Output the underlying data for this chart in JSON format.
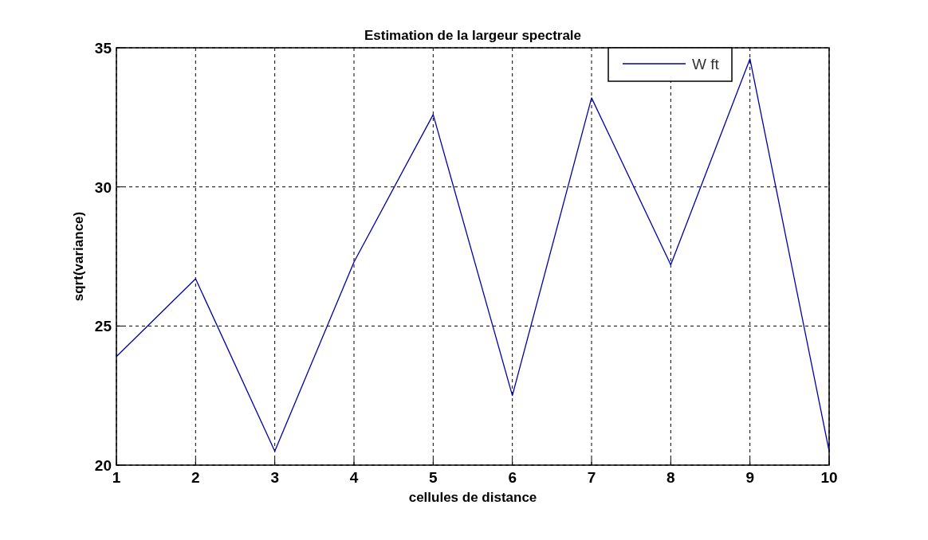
{
  "chart_data": {
    "type": "line",
    "title": "Estimation de la largeur spectrale",
    "xlabel": "cellules de distance",
    "ylabel": "sqrt(variance)",
    "x": [
      1,
      2,
      3,
      4,
      5,
      6,
      7,
      8,
      9,
      10
    ],
    "series": [
      {
        "name": "W ft",
        "color": "#0000aa",
        "values": [
          23.9,
          26.7,
          20.5,
          27.3,
          32.6,
          22.5,
          33.2,
          27.2,
          34.6,
          20.5
        ]
      }
    ],
    "xlim": [
      1,
      10
    ],
    "xticks": [
      1,
      2,
      3,
      4,
      5,
      6,
      7,
      8,
      9,
      10
    ],
    "ylim": [
      20,
      35
    ],
    "yticks": [
      20,
      25,
      30,
      35
    ],
    "grid": true,
    "legend": "top right",
    "line_style": "solid",
    "marker": "none"
  }
}
